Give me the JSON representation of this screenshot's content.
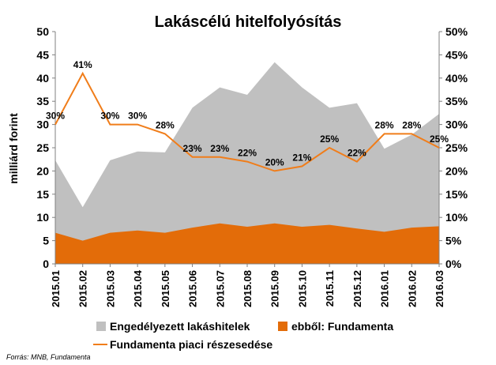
{
  "chart_data": {
    "type": "area",
    "title": "Lakáscélú hitelfolyósítás",
    "ylabel": "milliárd forint",
    "categories": [
      "2015.01",
      "2015.02",
      "2015.03",
      "2015.04",
      "2015.05",
      "2015.06",
      "2015.07",
      "2015.08",
      "2015.09",
      "2015.10",
      "2015.11",
      "2015.12",
      "2016.01",
      "2016.02",
      "2016.03"
    ],
    "ylim": [
      0,
      50
    ],
    "y_ticks": [
      "0",
      "5",
      "10",
      "15",
      "20",
      "25",
      "30",
      "35",
      "40",
      "45",
      "50"
    ],
    "y2lim": [
      0,
      50
    ],
    "y2_ticks": [
      "0%",
      "5%",
      "10%",
      "15%",
      "20%",
      "25%",
      "30%",
      "35%",
      "40%",
      "45%",
      "50%"
    ],
    "grid": false,
    "legend_position": "bottom",
    "series": [
      {
        "name": "Engedélyezett lakáshitelek",
        "type": "area",
        "color": "#c0c0c0",
        "axis": "left",
        "values": [
          22.3,
          12.2,
          22.3,
          24.2,
          24.0,
          33.6,
          38.0,
          36.4,
          43.4,
          38.0,
          33.6,
          34.6,
          24.8,
          27.8,
          32.3
        ]
      },
      {
        "name": "ebből: Fundamenta",
        "type": "area",
        "color": "#e36c09",
        "axis": "left",
        "values": [
          6.7,
          5.0,
          6.7,
          7.2,
          6.7,
          7.8,
          8.7,
          8.0,
          8.7,
          8.0,
          8.4,
          7.6,
          6.9,
          7.8,
          8.1
        ]
      },
      {
        "name": "Fundamenta piaci részesedése",
        "type": "line",
        "color": "#f07d1a",
        "axis": "right",
        "values": [
          30,
          41,
          30,
          30,
          28,
          23,
          23,
          22,
          20,
          21,
          25,
          22,
          28,
          28,
          25
        ],
        "labels": [
          "30%",
          "41%",
          "30%",
          "30%",
          "28%",
          "23%",
          "23%",
          "22%",
          "20%",
          "21%",
          "25%",
          "22%",
          "28%",
          "28%",
          "25%"
        ]
      }
    ]
  },
  "source": "Forrás: MNB, Fundamenta"
}
